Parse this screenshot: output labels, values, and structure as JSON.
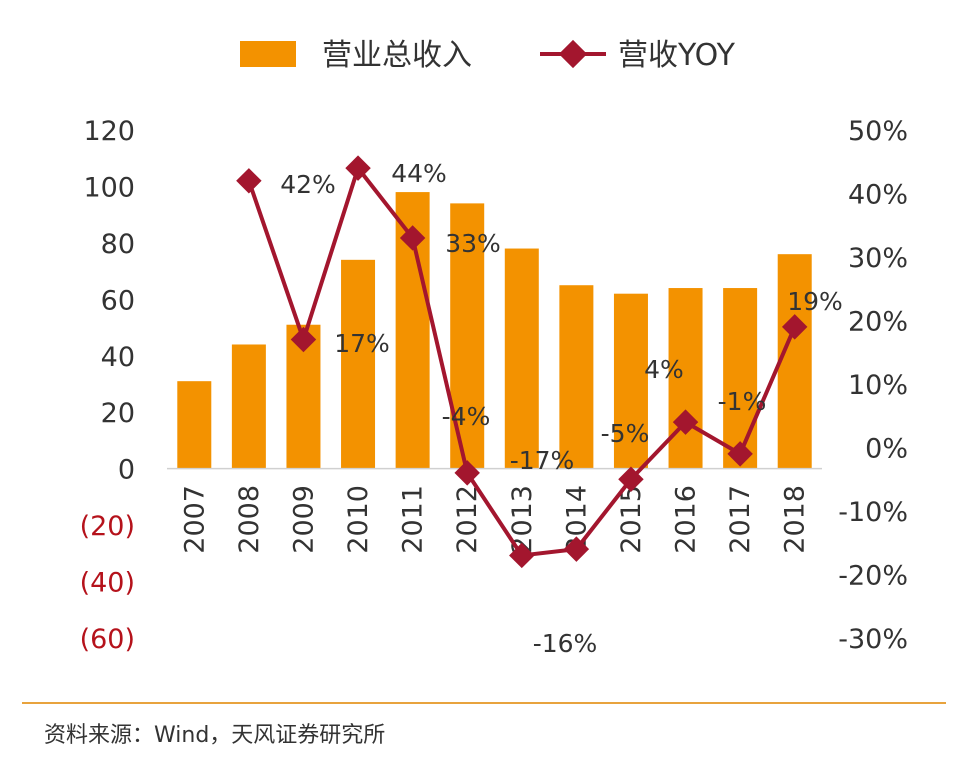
{
  "chart_data": {
    "type": "bar",
    "categories": [
      "2007",
      "2008",
      "2009",
      "2010",
      "2011",
      "2012",
      "2013",
      "2014",
      "2015",
      "2016",
      "2017",
      "2018"
    ],
    "series": [
      {
        "name": "营业总收入",
        "type": "bar",
        "axis": "left",
        "values": [
          31,
          44,
          51,
          74,
          98,
          94,
          78,
          65,
          62,
          64,
          64,
          76
        ]
      },
      {
        "name": "营收YOY",
        "type": "line",
        "axis": "right",
        "values": [
          null,
          42,
          17,
          44,
          33,
          -4,
          -17,
          -16,
          -5,
          4,
          -1,
          19
        ]
      }
    ],
    "data_labels": [
      "",
      "42%",
      "17%",
      "44%",
      "33%",
      "-4%",
      "-17%",
      "-16%",
      "-5%",
      "4%",
      "-1%",
      "19%"
    ],
    "left_axis": {
      "ylim": [
        -60,
        120
      ],
      "ticks": [
        120,
        100,
        80,
        60,
        40,
        20,
        0,
        -20,
        -40,
        -60
      ],
      "tick_labels": [
        "120",
        "100",
        "80",
        "60",
        "40",
        "20",
        "0",
        "(20)",
        "(40)",
        "(60)"
      ]
    },
    "right_axis": {
      "ylim": [
        -30,
        50
      ],
      "ticks": [
        50,
        40,
        30,
        20,
        10,
        0,
        -10,
        -20,
        -30
      ],
      "tick_labels": [
        "50%",
        "40%",
        "30%",
        "20%",
        "10%",
        "0%",
        "-10%",
        "-20%",
        "-30%"
      ]
    },
    "legend_position": "top",
    "grid": false,
    "colors": {
      "bar": "#f39200",
      "line": "#a3162e",
      "negative_tick": "#b5121b",
      "divider": "#e8a33d"
    }
  },
  "source_text": "资料来源：Wind，天风证券研究所"
}
